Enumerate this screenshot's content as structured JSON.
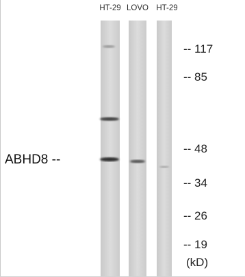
{
  "lanes": [
    {
      "label": "HT-29"
    },
    {
      "label": "LOVO"
    },
    {
      "label": "HT-29"
    }
  ],
  "markers": [
    {
      "label": "-- 117"
    },
    {
      "label": "-- 85"
    },
    {
      "label": "-- 48"
    },
    {
      "label": "-- 34"
    },
    {
      "label": "-- 26"
    },
    {
      "label": "-- 19"
    }
  ],
  "unit_label": "(kD)",
  "protein_label": "ABHD8 --",
  "colors": {
    "lane_fill": "#d8d8d8",
    "band": "#3a3a3a",
    "text": "#222222"
  }
}
